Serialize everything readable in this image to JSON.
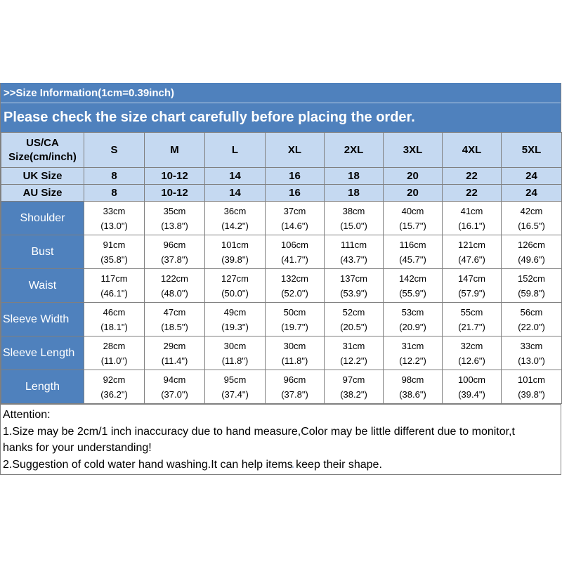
{
  "banner": {
    "size_info": ">>Size Information(1cm=0.39inch)",
    "notice": "Please check the size chart carefully before placing the order."
  },
  "header": {
    "us_label_line1": "US/CA",
    "us_label_line2": "Size(cm/inch)",
    "us_sizes": [
      "S",
      "M",
      "L",
      "XL",
      "2XL",
      "3XL",
      "4XL",
      "5XL"
    ],
    "uk_label": "UK Size",
    "uk_sizes": [
      "8",
      "10-12",
      "14",
      "16",
      "18",
      "20",
      "22",
      "24"
    ],
    "au_label": "AU Size",
    "au_sizes": [
      "8",
      "10-12",
      "14",
      "16",
      "18",
      "20",
      "22",
      "24"
    ]
  },
  "rows": [
    {
      "label": "Shoulder",
      "cm": [
        "33cm",
        "35cm",
        "36cm",
        "37cm",
        "38cm",
        "40cm",
        "41cm",
        "42cm"
      ],
      "inch": [
        "(13.0\")",
        "(13.8\")",
        "(14.2\")",
        "(14.6\")",
        "(15.0\")",
        "(15.7\")",
        "(16.1\")",
        "(16.5\")"
      ]
    },
    {
      "label": "Bust",
      "cm": [
        "91cm",
        "96cm",
        "101cm",
        "106cm",
        "111cm",
        "116cm",
        "121cm",
        "126cm"
      ],
      "inch": [
        "(35.8\")",
        "(37.8\")",
        "(39.8\")",
        "(41.7\")",
        "(43.7\")",
        "(45.7\")",
        "(47.6\")",
        "(49.6\")"
      ]
    },
    {
      "label": "Waist",
      "cm": [
        "117cm",
        "122cm",
        "127cm",
        "132cm",
        "137cm",
        "142cm",
        "147cm",
        "152cm"
      ],
      "inch": [
        "(46.1\")",
        "(48.0\")",
        "(50.0\")",
        "(52.0\")",
        "(53.9\")",
        "(55.9\")",
        "(57.9\")",
        "(59.8\")"
      ]
    },
    {
      "label": "Sleeve Width",
      "cm": [
        "46cm",
        "47cm",
        "49cm",
        "50cm",
        "52cm",
        "53cm",
        "55cm",
        "56cm"
      ],
      "inch": [
        "(18.1\")",
        "(18.5\")",
        "(19.3\")",
        "(19.7\")",
        "(20.5\")",
        "(20.9\")",
        "(21.7\")",
        "(22.0\")"
      ]
    },
    {
      "label": "Sleeve Length",
      "cm": [
        "28cm",
        "29cm",
        "30cm",
        "30cm",
        "31cm",
        "31cm",
        "32cm",
        "33cm"
      ],
      "inch": [
        "(11.0\")",
        "(11.4\")",
        "(11.8\")",
        "(11.8\")",
        "(12.2\")",
        "(12.2\")",
        "(12.6\")",
        "(13.0\")"
      ]
    },
    {
      "label": "Length",
      "cm": [
        "92cm",
        "94cm",
        "95cm",
        "96cm",
        "97cm",
        "98cm",
        "100cm",
        "101cm"
      ],
      "inch": [
        "(36.2\")",
        "(37.0\")",
        "(37.4\")",
        "(37.8\")",
        "(38.2\")",
        "(38.6\")",
        "(39.4\")",
        "(39.8\")"
      ]
    }
  ],
  "attention": {
    "title": "Attention:",
    "line1": "1.Size may be 2cm/1 inch inaccuracy due to hand measure,Color may be little different due to monitor,t",
    "line2": "hanks for your understanding!",
    "line3": "2.Suggestion of cold water hand washing.It can help items keep their shape."
  },
  "colors": {
    "banner": "#4f81bd",
    "header_fill": "#c5d9f1",
    "row_label_fill": "#4f81bd",
    "grid_line": "#7f7f7f"
  }
}
